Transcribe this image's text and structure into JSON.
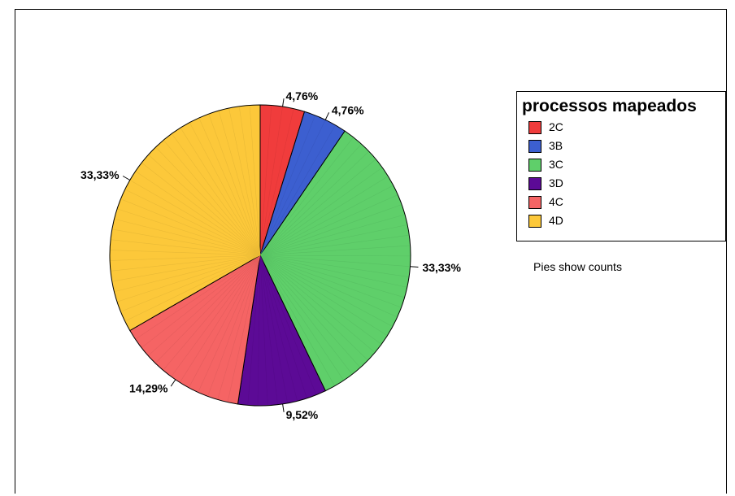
{
  "chart_data": {
    "type": "pie",
    "legend_title": "processos mapeados",
    "legend_position": "right",
    "footnote": "Pies show counts",
    "slices": [
      {
        "name": "2C",
        "percent": 4.76,
        "label": "4,76%",
        "color": "#f03c3c"
      },
      {
        "name": "3B",
        "percent": 4.76,
        "label": "4,76%",
        "color": "#3c5fd0"
      },
      {
        "name": "3C",
        "percent": 33.33,
        "label": "33,33%",
        "color": "#5fcf6a"
      },
      {
        "name": "3D",
        "percent": 9.52,
        "label": "9,52%",
        "color": "#5c0a96"
      },
      {
        "name": "4C",
        "percent": 14.29,
        "label": "14,29%",
        "color": "#f56464"
      },
      {
        "name": "4D",
        "percent": 33.33,
        "label": "33,33%",
        "color": "#fcc83a"
      }
    ]
  }
}
